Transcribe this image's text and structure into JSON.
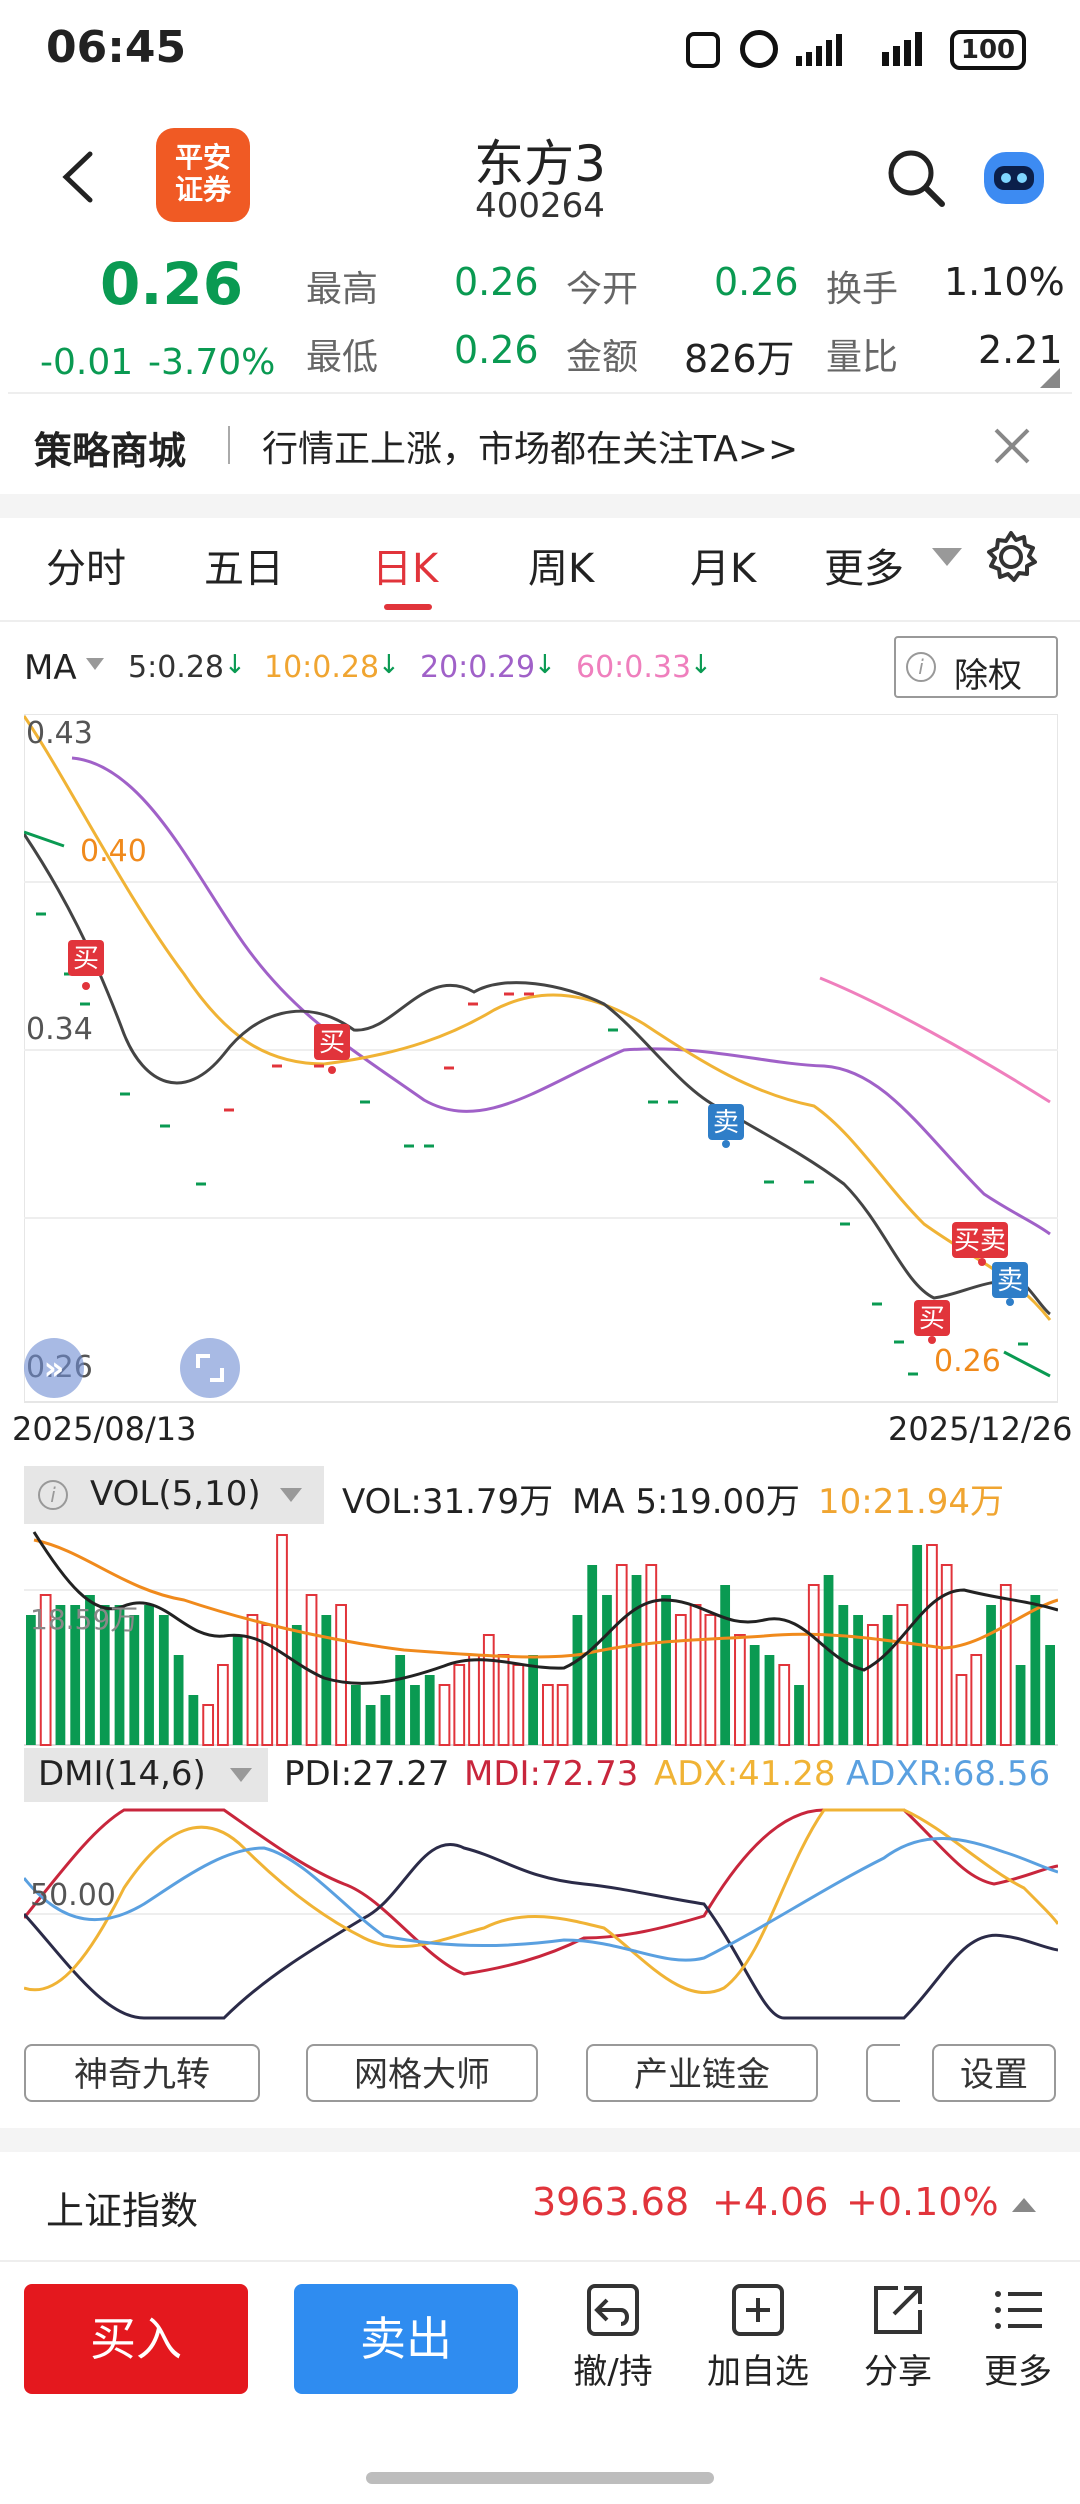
{
  "status_bar": {
    "time": "06:45",
    "battery": "100"
  },
  "header": {
    "title": "东方3",
    "code": "400264",
    "logo_line1": "平安",
    "logo_line2": "证券"
  },
  "quote": {
    "price": "0.26",
    "change": "-0.01",
    "change_pct": "-3.70%",
    "fields": [
      {
        "label": "最高",
        "value": "0.26"
      },
      {
        "label": "今开",
        "value": "0.26"
      },
      {
        "label": "换手",
        "value": "1.10%"
      },
      {
        "label": "最低",
        "value": "0.26"
      },
      {
        "label": "金额",
        "value": "826万"
      },
      {
        "label": "量比",
        "value": "2.21"
      }
    ]
  },
  "banner": {
    "title": "策略商城",
    "text": "行情正上涨，市场都在关注TA>>"
  },
  "tabs": [
    "分时",
    "五日",
    "日K",
    "周K",
    "月K",
    "更多"
  ],
  "active_tab": "日K",
  "ma": {
    "label": "MA",
    "items": [
      {
        "text": "5:0.28",
        "color": "#333333"
      },
      {
        "text": "10:0.28",
        "color": "#f0a531"
      },
      {
        "text": "20:0.29",
        "color": "#a061c8"
      },
      {
        "text": "60:0.33",
        "color": "#ef7fbd"
      }
    ],
    "chuquan": "除权"
  },
  "kline": {
    "y_labels": [
      "0.43",
      "0.40",
      "0.34",
      "0.26",
      "0.26"
    ],
    "date_start": "2025/08/13",
    "date_end": "2025/12/26",
    "markers": {
      "buy": "买",
      "sell": "卖"
    }
  },
  "vol": {
    "label": "VOL(5,10)",
    "vol_text": "VOL:31.79万",
    "ma5_text": "MA 5:19.00万",
    "ma10_text": "10:21.94万",
    "axis_label": "18.59万"
  },
  "dmi": {
    "label": "DMI(14,6)",
    "pdi": "PDI:27.27",
    "mdi": "MDI:72.73",
    "adx": "ADX:41.28",
    "adxr": "ADXR:68.56",
    "axis_label": "50.00"
  },
  "tools": [
    "神奇九转",
    "网格大师",
    "产业链金",
    "设置"
  ],
  "index_bar": {
    "name": "上证指数",
    "value": "3963.68",
    "change": "+4.06",
    "pct": "+0.10%"
  },
  "bottom": {
    "buy": "买入",
    "sell": "卖出",
    "actions": [
      "撤/持",
      "加自选",
      "分享",
      "更多"
    ]
  },
  "colors": {
    "red": "#e1343b",
    "green": "#0a9a52",
    "blue": "#2f8cf0",
    "orange": "#f0a531",
    "purple": "#a061c8",
    "pink": "#ef7fbd"
  }
}
